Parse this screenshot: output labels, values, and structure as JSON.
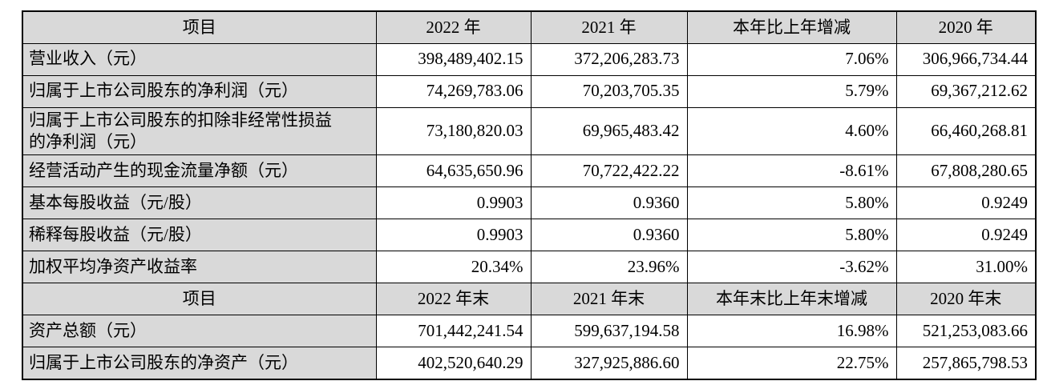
{
  "document": {
    "kind": "financial-summary-table",
    "colors": {
      "header_bg": "#d9d9d9",
      "label_bg": "#d9d9d9",
      "border": "#000000",
      "text": "#000000",
      "page_bg": "#ffffff"
    },
    "columns": [
      "item",
      "y2022",
      "y2021",
      "change",
      "y2020"
    ],
    "sections": [
      {
        "header": [
          "项目",
          "2022 年",
          "2021 年",
          "本年比上年增减",
          "2020 年"
        ],
        "rows": [
          [
            "营业收入（元）",
            "398,489,402.15",
            "372,206,283.73",
            "7.06%",
            "306,966,734.44"
          ],
          [
            "归属于上市公司股东的净利润（元）",
            "74,269,783.06",
            "70,203,705.35",
            "5.79%",
            "69,367,212.62"
          ],
          [
            "归属于上市公司股东的扣除非经常性损益的净利润（元）",
            "73,180,820.03",
            "69,965,483.42",
            "4.60%",
            "66,460,268.81"
          ],
          [
            "经营活动产生的现金流量净额（元）",
            "64,635,650.96",
            "70,722,422.22",
            "-8.61%",
            "67,808,280.65"
          ],
          [
            "基本每股收益（元/股）",
            "0.9903",
            "0.9360",
            "5.80%",
            "0.9249"
          ],
          [
            "稀释每股收益（元/股）",
            "0.9903",
            "0.9360",
            "5.80%",
            "0.9249"
          ],
          [
            "加权平均净资产收益率",
            "20.34%",
            "23.96%",
            "-3.62%",
            "31.00%"
          ]
        ]
      },
      {
        "header": [
          "项目",
          "2022 年末",
          "2021 年末",
          "本年末比上年末增减",
          "2020 年末"
        ],
        "rows": [
          [
            "资产总额（元）",
            "701,442,241.54",
            "599,637,194.58",
            "16.98%",
            "521,253,083.66"
          ],
          [
            "归属于上市公司股东的净资产（元）",
            "402,520,640.29",
            "327,925,886.60",
            "22.75%",
            "257,865,798.53"
          ]
        ]
      }
    ]
  }
}
